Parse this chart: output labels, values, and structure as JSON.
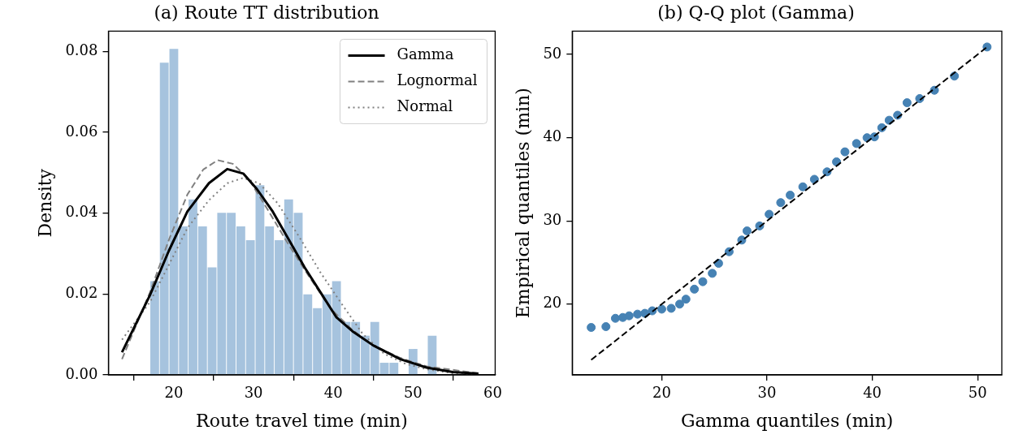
{
  "chart_data": [
    {
      "type": "histogram",
      "title": "(a) Route TT distribution",
      "xlabel": "Route travel time (min)",
      "ylabel": "Density",
      "bins": [
        17,
        18.2,
        19.4,
        20.6,
        21.8,
        23,
        24.2,
        25.4,
        26.6,
        27.8,
        29,
        30.2,
        31.4,
        32.6,
        33.8,
        35,
        36.2,
        37.4,
        38.6,
        39.8,
        41,
        42.2,
        43.4,
        44.6,
        45.8,
        47,
        48.2,
        49.4,
        50.6,
        51.8,
        53
      ],
      "values": [
        0.0232,
        0.0772,
        0.0806,
        0.0367,
        0.0434,
        0.0367,
        0.0266,
        0.0401,
        0.0401,
        0.0367,
        0.0333,
        0.0469,
        0.0367,
        0.0333,
        0.0434,
        0.0401,
        0.0199,
        0.0165,
        0.0199,
        0.0232,
        0.0131,
        0.0131,
        0.0097,
        0.0131,
        0.003,
        0.003,
        0,
        0.0064,
        0,
        0.0097
      ],
      "color": "#a6c3de",
      "series": [
        {
          "name": "Gamma",
          "type": "line",
          "color": "#000000",
          "line_style": "solid",
          "x": [
            13.5,
            17.0,
            19.4,
            21.7,
            24.4,
            26.7,
            28.7,
            30.4,
            32.4,
            34.4,
            36.4,
            38.4,
            40.4,
            42.4,
            45.0,
            48.4,
            51.7,
            55.0,
            58.2
          ],
          "values": [
            0.0056,
            0.0197,
            0.0308,
            0.0404,
            0.0474,
            0.0509,
            0.0498,
            0.046,
            0.0404,
            0.0335,
            0.0266,
            0.0204,
            0.0142,
            0.0108,
            0.0073,
            0.0039,
            0.0018,
            0.0007,
            0.0003
          ]
        },
        {
          "name": "Lognormal",
          "type": "line",
          "color": "#808080",
          "line_style": "dashed",
          "x": [
            13.5,
            17.0,
            19.4,
            21.7,
            23.7,
            25.5,
            27.4,
            29.4,
            31.7,
            34.4,
            37.0,
            39.7,
            42.4,
            45.0,
            48.4,
            51.7,
            58.2
          ],
          "values": [
            0.0039,
            0.0204,
            0.0335,
            0.0446,
            0.0508,
            0.0531,
            0.0522,
            0.0484,
            0.0411,
            0.0322,
            0.0242,
            0.0163,
            0.0111,
            0.0073,
            0.0042,
            0.0021,
            0.0004
          ]
        },
        {
          "name": "Normal",
          "type": "line",
          "color": "#808080",
          "line_style": "dotted",
          "x": [
            13.5,
            17.0,
            19.4,
            21.7,
            24.4,
            26.7,
            28.7,
            30.7,
            33.0,
            35.7,
            38.4,
            41.0,
            43.7,
            46.4,
            49.0,
            51.7,
            55.0,
            58.2
          ],
          "values": [
            0.0087,
            0.018,
            0.0273,
            0.0363,
            0.0432,
            0.0474,
            0.0487,
            0.0474,
            0.0425,
            0.0342,
            0.0253,
            0.0177,
            0.0101,
            0.0052,
            0.0028,
            0.0014,
            0.0004,
            0.0001
          ]
        }
      ],
      "xlim": [
        11.8,
        60.3
      ],
      "xticks": [
        20,
        30,
        40,
        50,
        60
      ],
      "ylim": [
        0,
        0.085
      ],
      "yticks": [
        {
          "value": 0,
          "label": "0.00"
        },
        {
          "value": 0.02,
          "label": "0.02"
        },
        {
          "value": 0.04,
          "label": "0.04"
        },
        {
          "value": 0.06,
          "label": "0.06"
        },
        {
          "value": 0.08,
          "label": "0.08"
        }
      ],
      "legend": "top right",
      "grid": false
    },
    {
      "type": "scatter",
      "title": "(b) Q-Q plot (Gamma)",
      "xlabel": "Gamma quantiles (min)",
      "ylabel": "Empirical quantiles (min)",
      "series": [
        {
          "type": "scatter",
          "marker": "circle",
          "color": "#4682b4",
          "x": [
            13.3,
            14.7,
            15.6,
            16.3,
            16.9,
            17.7,
            18.4,
            19.1,
            20.0,
            20.9,
            21.7,
            22.3,
            23.1,
            23.9,
            24.8,
            25.4,
            26.4,
            27.6,
            28.1,
            29.3,
            30.2,
            31.3,
            32.2,
            33.4,
            34.5,
            35.7,
            36.6,
            37.4,
            38.5,
            39.5,
            40.2,
            40.9,
            41.6,
            42.4,
            43.3,
            44.5,
            45.9,
            47.8,
            50.9
          ],
          "values": [
            17.2,
            17.3,
            18.3,
            18.4,
            18.6,
            18.8,
            18.9,
            19.2,
            19.4,
            19.5,
            20.0,
            20.6,
            21.8,
            22.7,
            23.7,
            24.9,
            26.3,
            27.7,
            28.8,
            29.4,
            30.8,
            32.2,
            33.1,
            34.1,
            35.0,
            35.9,
            37.1,
            38.3,
            39.3,
            40.0,
            40.1,
            41.2,
            42.1,
            42.7,
            44.2,
            44.7,
            45.7,
            47.4,
            50.9
          ]
        },
        {
          "type": "line",
          "color": "#000000",
          "line_style": "dashed",
          "x": [
            13.3,
            50.9
          ],
          "values": [
            13.3,
            50.9
          ]
        }
      ],
      "xlim": [
        11.5,
        52.3
      ],
      "xticks": [
        20,
        30,
        40,
        50
      ],
      "ylim": [
        11.5,
        52.8
      ],
      "yticks": [
        20,
        30,
        40,
        50
      ],
      "grid": false
    }
  ]
}
